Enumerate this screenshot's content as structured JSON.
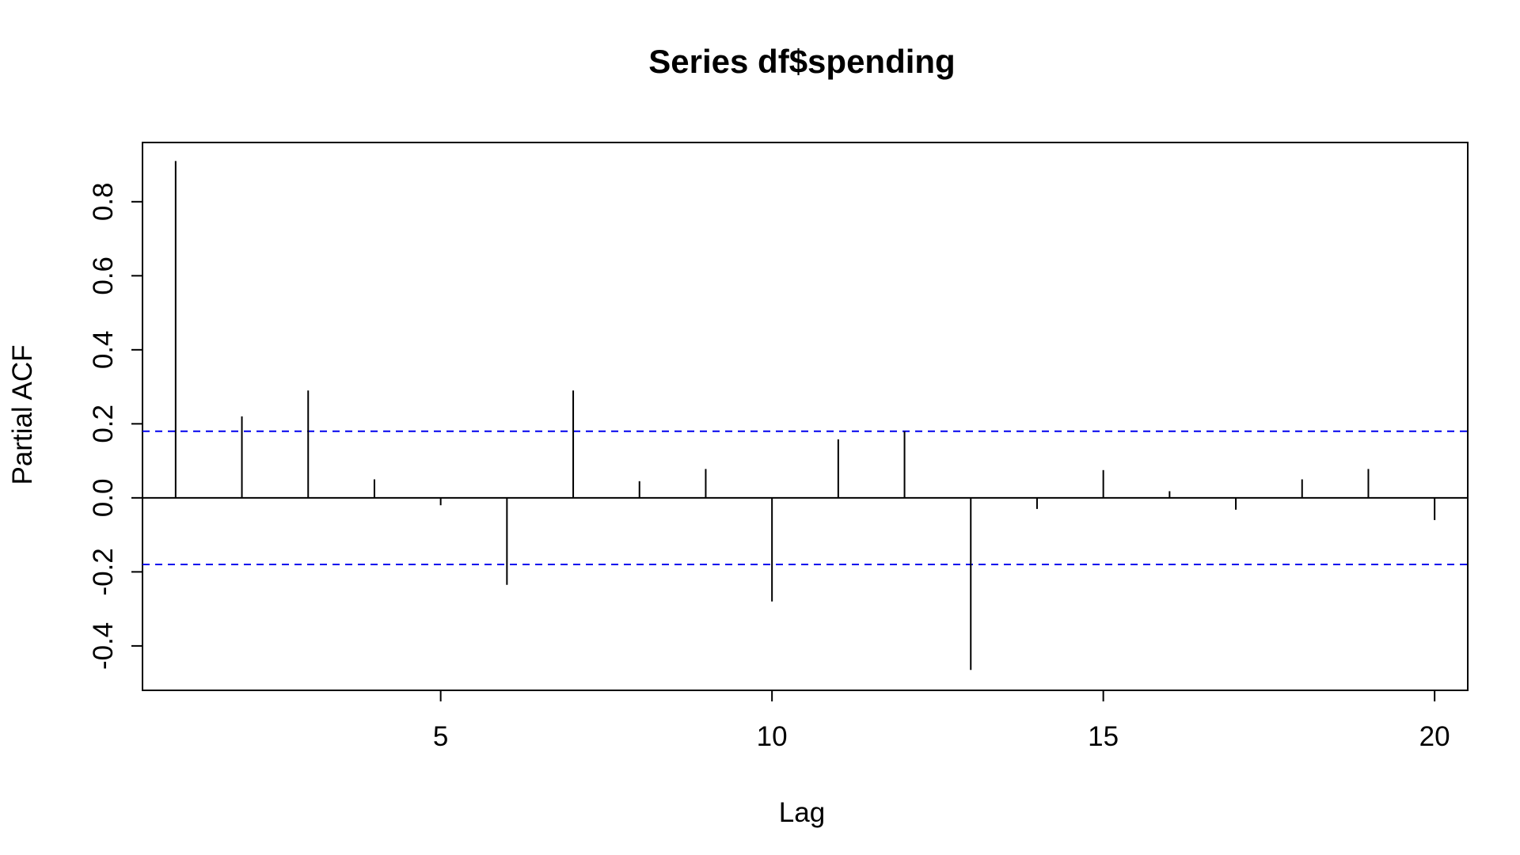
{
  "chart_data": {
    "type": "bar",
    "title": "Series  df$spending",
    "xlabel": "Lag",
    "ylabel": "Partial ACF",
    "xlim": [
      0.5,
      20.5
    ],
    "ylim": [
      -0.52,
      0.96
    ],
    "x_ticks": [
      5,
      10,
      15,
      20
    ],
    "x_tick_labels": [
      "5",
      "10",
      "15",
      "20"
    ],
    "y_ticks": [
      -0.4,
      -0.2,
      0.0,
      0.2,
      0.4,
      0.6,
      0.8
    ],
    "y_tick_labels": [
      "-0.4",
      "-0.2",
      "0.0",
      "0.2",
      "0.4",
      "0.6",
      "0.8"
    ],
    "grid": false,
    "zero_line": true,
    "confidence_bounds": {
      "upper": 0.18,
      "lower": -0.18,
      "color": "#0000ee",
      "style": "dashed"
    },
    "series": [
      {
        "x": [
          1,
          2,
          3,
          4,
          5,
          6,
          7,
          8,
          9,
          10,
          11,
          12,
          13,
          14,
          15,
          16,
          17,
          18,
          19,
          20
        ],
        "values": [
          0.91,
          0.22,
          0.29,
          0.05,
          -0.02,
          -0.235,
          0.29,
          0.045,
          0.078,
          -0.28,
          0.158,
          0.18,
          -0.465,
          -0.03,
          0.075,
          0.018,
          -0.032,
          0.05,
          0.078,
          -0.06
        ],
        "color": "#000000"
      }
    ]
  }
}
